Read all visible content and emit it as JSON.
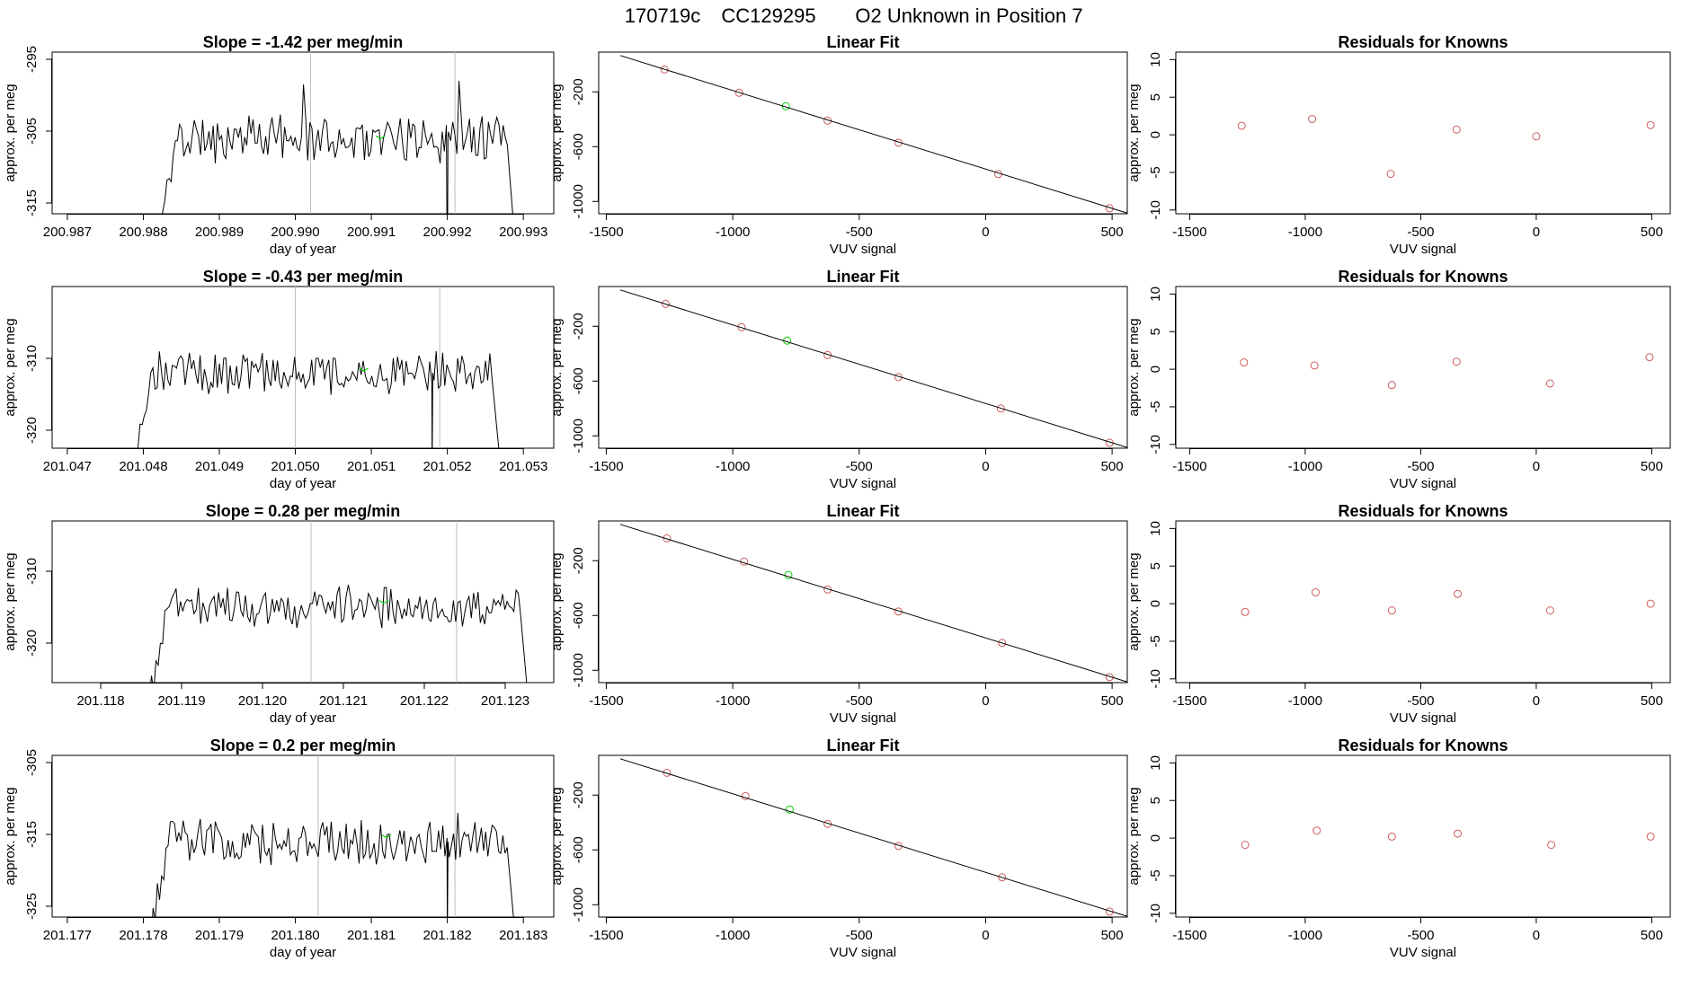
{
  "header": {
    "run_id": "170719c",
    "tank_id": "CC129295",
    "description": "O2 Unknown in Position  7"
  },
  "colors": {
    "line": "#000000",
    "known_point": "#cd5c5c",
    "unknown_point": "#00cc00",
    "reference_line": "#bebebe",
    "axis": "#000000"
  },
  "chart_data": [
    {
      "type": "line",
      "title": "Slope =  -1.42  per meg/min",
      "xlabel": "day of year",
      "ylabel": "approx. per meg",
      "xlim": [
        200.9868,
        200.9934
      ],
      "ylim": [
        -316.5,
        -294
      ],
      "xticks": [
        "200.987",
        "200.988",
        "200.989",
        "200.990",
        "200.991",
        "200.992",
        "200.993"
      ],
      "xtick_values": [
        200.987,
        200.988,
        200.989,
        200.99,
        200.991,
        200.992,
        200.993
      ],
      "yticks": [
        "-295",
        "-305",
        "-315"
      ],
      "ytick_values": [
        -295,
        -305,
        -315
      ],
      "ref_lines_x": [
        200.9902,
        200.9921
      ],
      "trace": {
        "start": 200.9882,
        "end": 200.9929,
        "base": -306,
        "start_value": -320,
        "end_value": -322,
        "noise": 1.5,
        "seed": 11,
        "dips": [
          [
            200.992,
            -330
          ]
        ],
        "spikes": [
          [
            200.9901,
            -298.5
          ],
          [
            200.99215,
            -298
          ]
        ]
      },
      "unknown_point": {
        "x": 200.99112,
        "y": -305.8
      }
    },
    {
      "type": "scatter",
      "title": "Linear Fit",
      "xlabel": "VUV signal",
      "ylabel": "approx. per meg",
      "xlim": [
        -1530,
        560
      ],
      "ylim": [
        -1090,
        90
      ],
      "xticks": [
        "-1500",
        "-1000",
        "-500",
        "0",
        "500"
      ],
      "xtick_values": [
        -1500,
        -1000,
        -500,
        0,
        500
      ],
      "yticks": [
        "-200",
        "-600",
        "-1000"
      ],
      "ytick_values": [
        -200,
        -600,
        -1000
      ],
      "fit_line": {
        "x": [
          -1445,
          560
        ],
        "y": [
          65,
          -1085
        ]
      },
      "knowns": {
        "x": [
          -1270,
          -975,
          -625,
          -345,
          50,
          490
        ],
        "y": [
          -37,
          -207,
          -410,
          -571,
          -800,
          -1050
        ]
      },
      "unknown": {
        "x": -790,
        "y": -305
      }
    },
    {
      "type": "scatter",
      "title": "Residuals for Knowns",
      "xlabel": "VUV signal",
      "ylabel": "approx. per meg",
      "xlim": [
        -1560,
        580
      ],
      "ylim": [
        -10.5,
        11
      ],
      "xticks": [
        "-1500",
        "-1000",
        "-500",
        "0",
        "500"
      ],
      "xtick_values": [
        -1500,
        -1000,
        -500,
        0,
        500
      ],
      "yticks": [
        "-10",
        "-5",
        "0",
        "5",
        "10"
      ],
      "ytick_values": [
        -10,
        -5,
        0,
        5,
        10
      ],
      "x": [
        -1275,
        -970,
        -630,
        -345,
        0,
        495
      ],
      "y": [
        1.2,
        2.1,
        -5.2,
        0.7,
        -0.2,
        1.3
      ]
    },
    {
      "type": "line",
      "title": "Slope =  -0.43  per meg/min",
      "xlabel": "day of year",
      "ylabel": "approx. per meg",
      "xlim": [
        201.0468,
        201.0534
      ],
      "ylim": [
        -322.5,
        -300
      ],
      "xticks": [
        "201.047",
        "201.048",
        "201.049",
        "201.050",
        "201.051",
        "201.052",
        "201.053"
      ],
      "xtick_values": [
        201.047,
        201.048,
        201.049,
        201.05,
        201.051,
        201.052,
        201.053
      ],
      "yticks": [
        "-310",
        "-320"
      ],
      "ytick_values": [
        -310,
        -320
      ],
      "ref_lines_x": [
        201.05,
        201.0519
      ],
      "trace": {
        "start": 201.0479,
        "end": 201.0527,
        "base": -312,
        "start_value": -322,
        "end_value": -325,
        "noise": 1.3,
        "seed": 23,
        "dips": [
          [
            201.0518,
            -326
          ]
        ],
        "spikes": [
          [
            201.05185,
            -309
          ]
        ]
      },
      "unknown_point": {
        "x": 201.0509,
        "y": -311.5
      }
    },
    {
      "type": "scatter",
      "title": "Linear Fit",
      "xlabel": "VUV signal",
      "ylabel": "approx. per meg",
      "xlim": [
        -1530,
        560
      ],
      "ylim": [
        -1090,
        90
      ],
      "xticks": [
        "-1500",
        "-1000",
        "-500",
        "0",
        "500"
      ],
      "xtick_values": [
        -1500,
        -1000,
        -500,
        0,
        500
      ],
      "yticks": [
        "-200",
        "-600",
        "-1000"
      ],
      "ytick_values": [
        -200,
        -600,
        -1000
      ],
      "fit_line": {
        "x": [
          -1445,
          560
        ],
        "y": [
          65,
          -1085
        ]
      },
      "knowns": {
        "x": [
          -1265,
          -965,
          -625,
          -345,
          60,
          490
        ],
        "y": [
          -37,
          -207,
          -410,
          -571,
          -800,
          -1050
        ]
      },
      "unknown": {
        "x": -785,
        "y": -305
      }
    },
    {
      "type": "scatter",
      "title": "Residuals for Knowns",
      "xlabel": "VUV signal",
      "ylabel": "approx. per meg",
      "xlim": [
        -1560,
        580
      ],
      "ylim": [
        -10.5,
        11
      ],
      "xticks": [
        "-1500",
        "-1000",
        "-500",
        "0",
        "500"
      ],
      "xtick_values": [
        -1500,
        -1000,
        -500,
        0,
        500
      ],
      "yticks": [
        "-10",
        "-5",
        "0",
        "5",
        "10"
      ],
      "ytick_values": [
        -10,
        -5,
        0,
        5,
        10
      ],
      "x": [
        -1265,
        -960,
        -625,
        -345,
        60,
        490
      ],
      "y": [
        0.9,
        0.5,
        -2.1,
        1.0,
        -1.9,
        1.6
      ]
    },
    {
      "type": "line",
      "title": "Slope =  0.28  per meg/min",
      "xlabel": "day of year",
      "ylabel": "approx. per meg",
      "xlim": [
        201.1174,
        201.1236
      ],
      "ylim": [
        -325.5,
        -303
      ],
      "xticks": [
        "201.118",
        "201.119",
        "201.120",
        "201.121",
        "201.122",
        "201.123"
      ],
      "xtick_values": [
        201.118,
        201.119,
        201.12,
        201.121,
        201.122,
        201.123
      ],
      "yticks": [
        "-310",
        "-320"
      ],
      "ytick_values": [
        -310,
        -320
      ],
      "ref_lines_x": [
        201.1206,
        201.1224
      ],
      "trace": {
        "start": 201.1186,
        "end": 201.1233,
        "base": -315,
        "start_value": -328,
        "end_value": -330,
        "noise": 1.3,
        "seed": 37,
        "dips": [],
        "spikes": []
      },
      "unknown_point": {
        "x": 201.1215,
        "y": -314.2
      }
    },
    {
      "type": "scatter",
      "title": "Linear Fit",
      "xlabel": "VUV signal",
      "ylabel": "approx. per meg",
      "xlim": [
        -1530,
        560
      ],
      "ylim": [
        -1090,
        90
      ],
      "xticks": [
        "-1500",
        "-1000",
        "-500",
        "0",
        "500"
      ],
      "xtick_values": [
        -1500,
        -1000,
        -500,
        0,
        500
      ],
      "yticks": [
        "-200",
        "-600",
        "-1000"
      ],
      "ytick_values": [
        -200,
        -600,
        -1000
      ],
      "fit_line": {
        "x": [
          -1445,
          560
        ],
        "y": [
          65,
          -1085
        ]
      },
      "knowns": {
        "x": [
          -1260,
          -955,
          -625,
          -345,
          65,
          490
        ],
        "y": [
          -37,
          -207,
          -410,
          -571,
          -800,
          -1050
        ]
      },
      "unknown": {
        "x": -780,
        "y": -305
      }
    },
    {
      "type": "scatter",
      "title": "Residuals for Knowns",
      "xlabel": "VUV signal",
      "ylabel": "approx. per meg",
      "xlim": [
        -1560,
        580
      ],
      "ylim": [
        -10.5,
        11
      ],
      "xticks": [
        "-1500",
        "-1000",
        "-500",
        "0",
        "500"
      ],
      "xtick_values": [
        -1500,
        -1000,
        -500,
        0,
        500
      ],
      "yticks": [
        "-10",
        "-5",
        "0",
        "5",
        "10"
      ],
      "ytick_values": [
        -10,
        -5,
        0,
        5,
        10
      ],
      "x": [
        -1260,
        -955,
        -625,
        -340,
        60,
        495
      ],
      "y": [
        -1.1,
        1.5,
        -0.9,
        1.3,
        -0.9,
        0.0
      ]
    },
    {
      "type": "line",
      "title": "Slope =  0.2  per meg/min",
      "xlabel": "day of year",
      "ylabel": "approx. per meg",
      "xlim": [
        201.1768,
        201.1834
      ],
      "ylim": [
        -326.5,
        -304
      ],
      "xticks": [
        "201.177",
        "201.178",
        "201.179",
        "201.180",
        "201.181",
        "201.182",
        "201.183"
      ],
      "xtick_values": [
        201.177,
        201.178,
        201.179,
        201.18,
        201.181,
        201.182,
        201.183
      ],
      "yticks": [
        "-305",
        "-315",
        "-325"
      ],
      "ytick_values": [
        -305,
        -315,
        -325
      ],
      "ref_lines_x": [
        201.1803,
        201.1821
      ],
      "trace": {
        "start": 201.1781,
        "end": 201.1829,
        "base": -316,
        "start_value": -328,
        "end_value": -330,
        "noise": 1.4,
        "seed": 53,
        "dips": [
          [
            201.182,
            -330
          ]
        ],
        "spikes": [
          [
            201.18215,
            -312
          ]
        ]
      },
      "unknown_point": {
        "x": 201.1812,
        "y": -315.2
      }
    },
    {
      "type": "scatter",
      "title": "Linear Fit",
      "xlabel": "VUV signal",
      "ylabel": "approx. per meg",
      "xlim": [
        -1530,
        560
      ],
      "ylim": [
        -1090,
        90
      ],
      "xticks": [
        "-1500",
        "-1000",
        "-500",
        "0",
        "500"
      ],
      "xtick_values": [
        -1500,
        -1000,
        -500,
        0,
        500
      ],
      "yticks": [
        "-200",
        "-600",
        "-1000"
      ],
      "ytick_values": [
        -200,
        -600,
        -1000
      ],
      "fit_line": {
        "x": [
          -1445,
          560
        ],
        "y": [
          65,
          -1085
        ]
      },
      "knowns": {
        "x": [
          -1260,
          -950,
          -625,
          -345,
          65,
          490
        ],
        "y": [
          -37,
          -207,
          -410,
          -571,
          -800,
          -1050
        ]
      },
      "unknown": {
        "x": -775,
        "y": -305
      }
    },
    {
      "type": "scatter",
      "title": "Residuals for Knowns",
      "xlabel": "VUV signal",
      "ylabel": "approx. per meg",
      "xlim": [
        -1560,
        580
      ],
      "ylim": [
        -10.5,
        11
      ],
      "xticks": [
        "-1500",
        "-1000",
        "-500",
        "0",
        "500"
      ],
      "xtick_values": [
        -1500,
        -1000,
        -500,
        0,
        500
      ],
      "yticks": [
        "-10",
        "-5",
        "0",
        "5",
        "10"
      ],
      "ytick_values": [
        -10,
        -5,
        0,
        5,
        10
      ],
      "x": [
        -1260,
        -950,
        -625,
        -340,
        65,
        495
      ],
      "y": [
        -0.9,
        1.0,
        0.2,
        0.6,
        -0.9,
        0.2
      ]
    }
  ]
}
